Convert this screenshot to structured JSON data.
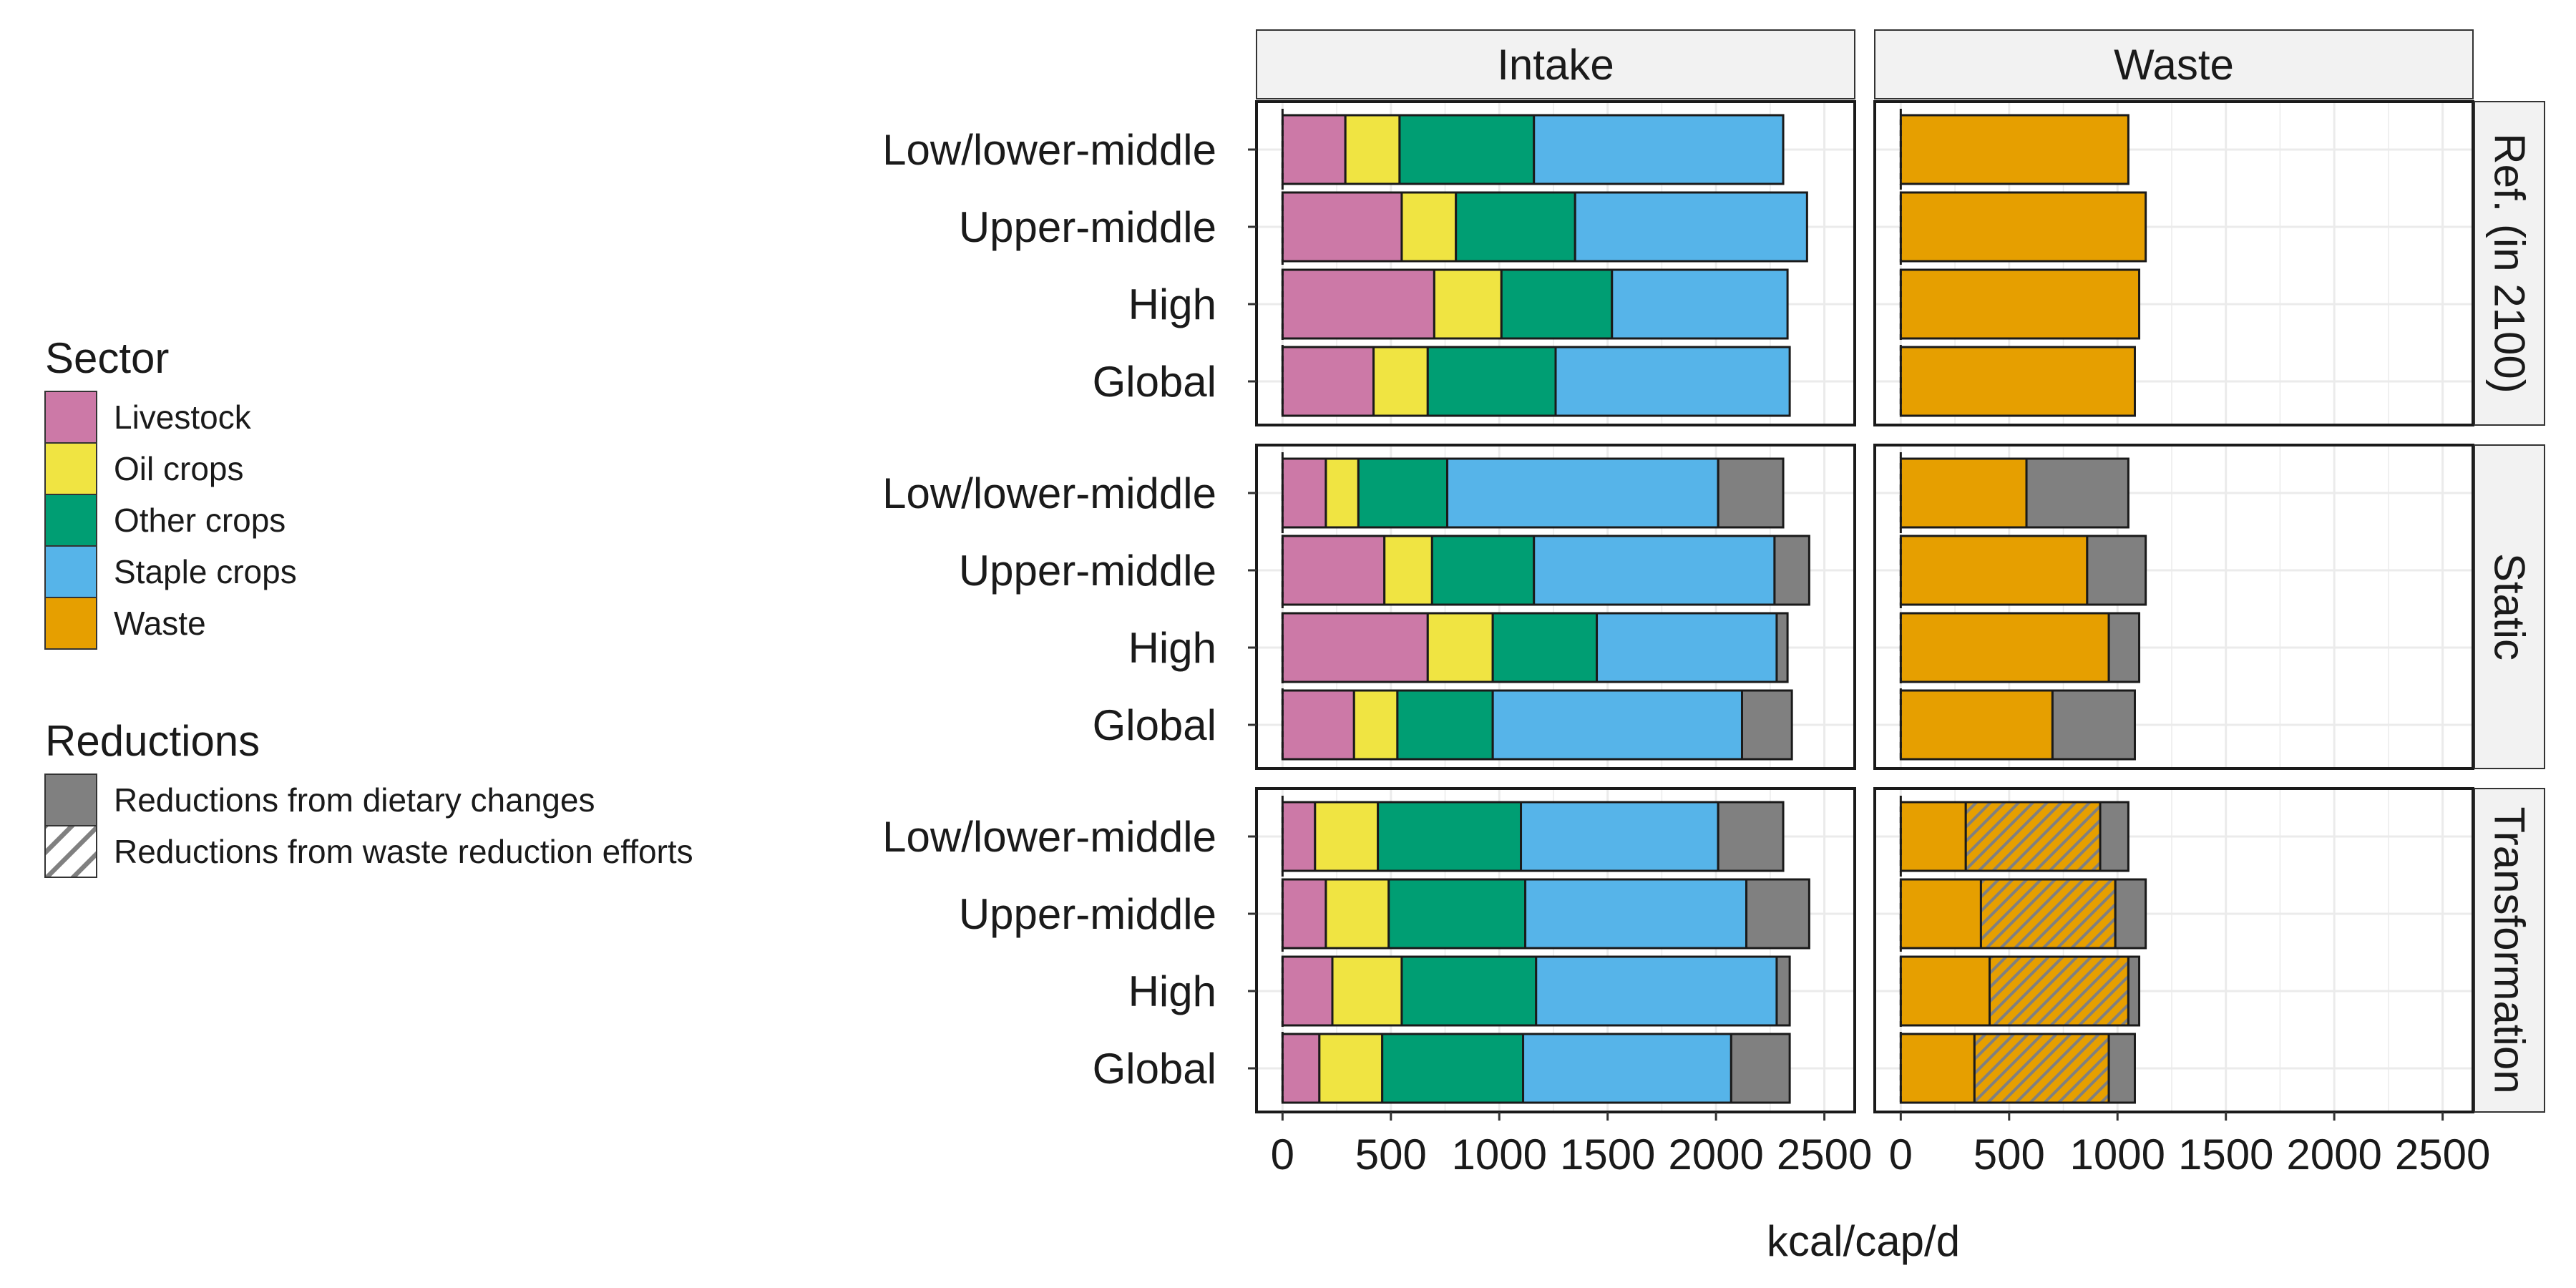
{
  "chart_data": {
    "type": "bar",
    "orientation": "horizontal",
    "stacked": true,
    "columns": [
      "Intake",
      "Waste"
    ],
    "rows": [
      "Ref. (in 2100)",
      "Static",
      "Transformation"
    ],
    "categories": [
      "Low/lower-middle",
      "Upper-middle",
      "High",
      "Global"
    ],
    "xlabel": "kcal/cap/d",
    "xlim": [
      -120,
      2640
    ],
    "xticks": [
      0,
      500,
      1000,
      1500,
      2000,
      2500
    ],
    "grid": true,
    "legend_position": "left",
    "legends": [
      {
        "title": "Sector",
        "entries": [
          {
            "label": "Livestock",
            "color": "#CC79A7",
            "pattern": "solid"
          },
          {
            "label": "Oil crops",
            "color": "#F0E442",
            "pattern": "solid"
          },
          {
            "label": "Other crops",
            "color": "#009E73",
            "pattern": "solid"
          },
          {
            "label": "Staple crops",
            "color": "#56B4E9",
            "pattern": "solid"
          },
          {
            "label": "Waste",
            "color": "#E69F00",
            "pattern": "solid"
          }
        ]
      },
      {
        "title": "Reductions",
        "entries": [
          {
            "label": "Reductions from dietary changes",
            "color": "#808080",
            "pattern": "solid"
          },
          {
            "label": "Reductions from waste reduction efforts",
            "color": "#808080",
            "pattern": "hatch"
          }
        ]
      }
    ],
    "series_order": [
      "Livestock",
      "Oil crops",
      "Other crops",
      "Staple crops",
      "Waste",
      "Reductions from waste reduction efforts",
      "Reductions from dietary changes"
    ],
    "panels": [
      {
        "column": "Intake",
        "row": "Ref. (in 2100)",
        "bars": [
          {
            "category": "Low/lower-middle",
            "values": {
              "Livestock": 290,
              "Oil crops": 250,
              "Other crops": 620,
              "Staple crops": 1150
            }
          },
          {
            "category": "Upper-middle",
            "values": {
              "Livestock": 550,
              "Oil crops": 250,
              "Other crops": 550,
              "Staple crops": 1070
            }
          },
          {
            "category": "High",
            "values": {
              "Livestock": 700,
              "Oil crops": 310,
              "Other crops": 510,
              "Staple crops": 810
            }
          },
          {
            "category": "Global",
            "values": {
              "Livestock": 420,
              "Oil crops": 250,
              "Other crops": 590,
              "Staple crops": 1080
            }
          }
        ]
      },
      {
        "column": "Waste",
        "row": "Ref. (in 2100)",
        "bars": [
          {
            "category": "Low/lower-middle",
            "values": {
              "Waste": 1050
            }
          },
          {
            "category": "Upper-middle",
            "values": {
              "Waste": 1130
            }
          },
          {
            "category": "High",
            "values": {
              "Waste": 1100
            }
          },
          {
            "category": "Global",
            "values": {
              "Waste": 1080
            }
          }
        ]
      },
      {
        "column": "Intake",
        "row": "Static",
        "bars": [
          {
            "category": "Low/lower-middle",
            "values": {
              "Livestock": 200,
              "Oil crops": 150,
              "Other crops": 410,
              "Staple crops": 1250,
              "Reductions from dietary changes": 300
            }
          },
          {
            "category": "Upper-middle",
            "values": {
              "Livestock": 470,
              "Oil crops": 220,
              "Other crops": 470,
              "Staple crops": 1110,
              "Reductions from dietary changes": 160
            }
          },
          {
            "category": "High",
            "values": {
              "Livestock": 670,
              "Oil crops": 300,
              "Other crops": 480,
              "Staple crops": 830,
              "Reductions from dietary changes": 50
            }
          },
          {
            "category": "Global",
            "values": {
              "Livestock": 330,
              "Oil crops": 200,
              "Other crops": 440,
              "Staple crops": 1150,
              "Reductions from dietary changes": 230
            }
          }
        ]
      },
      {
        "column": "Waste",
        "row": "Static",
        "bars": [
          {
            "category": "Low/lower-middle",
            "values": {
              "Waste": 580,
              "Reductions from dietary changes": 470
            }
          },
          {
            "category": "Upper-middle",
            "values": {
              "Waste": 860,
              "Reductions from dietary changes": 270
            }
          },
          {
            "category": "High",
            "values": {
              "Waste": 960,
              "Reductions from dietary changes": 140
            }
          },
          {
            "category": "Global",
            "values": {
              "Waste": 700,
              "Reductions from dietary changes": 380
            }
          }
        ]
      },
      {
        "column": "Intake",
        "row": "Transformation",
        "bars": [
          {
            "category": "Low/lower-middle",
            "values": {
              "Livestock": 150,
              "Oil crops": 290,
              "Other crops": 660,
              "Staple crops": 910,
              "Reductions from dietary changes": 300
            }
          },
          {
            "category": "Upper-middle",
            "values": {
              "Livestock": 200,
              "Oil crops": 290,
              "Other crops": 630,
              "Staple crops": 1020,
              "Reductions from dietary changes": 290
            }
          },
          {
            "category": "High",
            "values": {
              "Livestock": 230,
              "Oil crops": 320,
              "Other crops": 620,
              "Staple crops": 1110,
              "Reductions from dietary changes": 60
            }
          },
          {
            "category": "Global",
            "values": {
              "Livestock": 170,
              "Oil crops": 290,
              "Other crops": 650,
              "Staple crops": 960,
              "Reductions from dietary changes": 270
            }
          }
        ]
      },
      {
        "column": "Waste",
        "row": "Transformation",
        "bars": [
          {
            "category": "Low/lower-middle",
            "values": {
              "Waste": 300,
              "Reductions from waste reduction efforts": 620,
              "Reductions from dietary changes": 130
            }
          },
          {
            "category": "Upper-middle",
            "values": {
              "Waste": 370,
              "Reductions from waste reduction efforts": 620,
              "Reductions from dietary changes": 140
            }
          },
          {
            "category": "High",
            "values": {
              "Waste": 410,
              "Reductions from waste reduction efforts": 640,
              "Reductions from dietary changes": 50
            }
          },
          {
            "category": "Global",
            "values": {
              "Waste": 340,
              "Reductions from waste reduction efforts": 620,
              "Reductions from dietary changes": 120
            }
          }
        ]
      }
    ]
  }
}
